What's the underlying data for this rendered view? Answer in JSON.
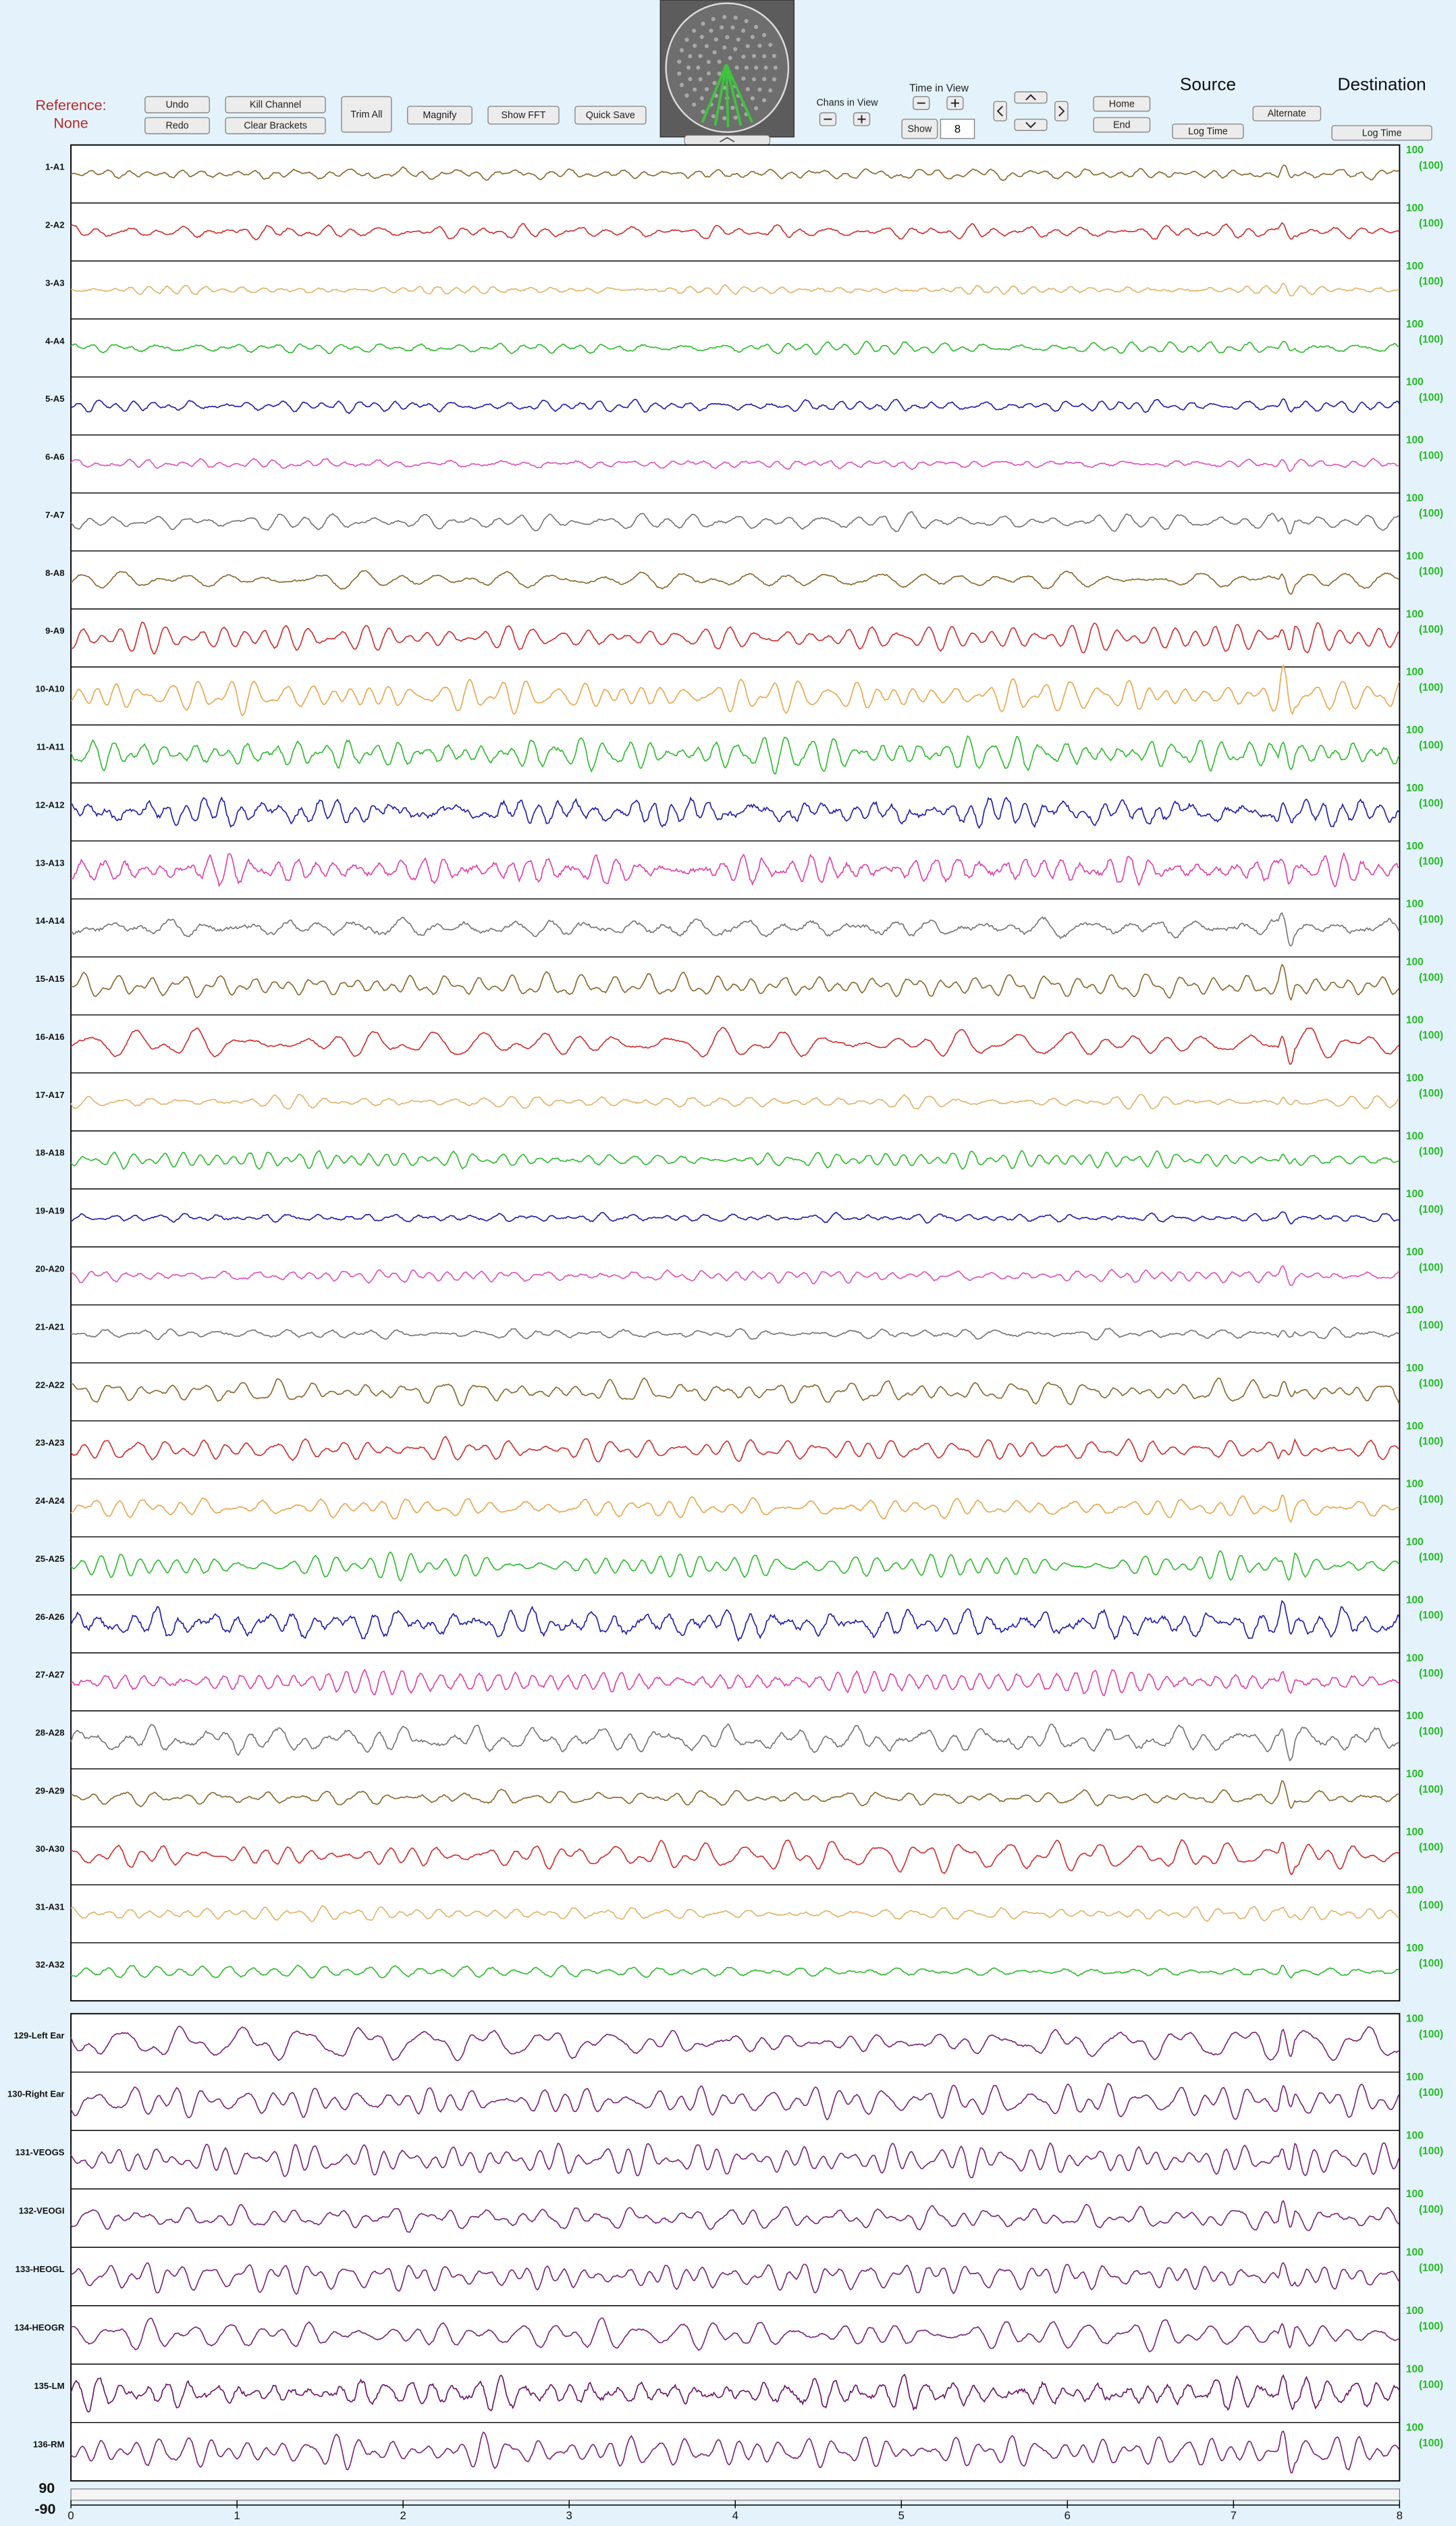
{
  "toolbar": {
    "reference_label": "Reference:",
    "reference_value": "None",
    "undo": "Undo",
    "redo": "Redo",
    "kill_channel": "Kill Channel",
    "clear_brackets": "Clear Brackets",
    "trim_all": "Trim All",
    "magnify": "Magnify",
    "show_fft": "Show FFT",
    "quick_save": "Quick Save",
    "chans_in_view": "Chans in View",
    "time_in_view": "Time in View",
    "show": "Show",
    "time_value": 8,
    "home": "Home",
    "end": "End",
    "source": "Source",
    "source_log_time": "Log Time",
    "alternate": "Alternate",
    "destination": "Destination",
    "destination_log_time": "Log Time"
  },
  "channels": [
    {
      "name": "1-A1",
      "color": "#8c6a30",
      "scale": 100,
      "scale_label": "(100)"
    },
    {
      "name": "2-A2",
      "color": "#cc3333",
      "scale": 100,
      "scale_label": "(100)"
    },
    {
      "name": "3-A3",
      "color": "#e2b46c",
      "scale": 100,
      "scale_label": "(100)"
    },
    {
      "name": "4-A4",
      "color": "#33bb33",
      "scale": 100,
      "scale_label": "(100)"
    },
    {
      "name": "5-A5",
      "color": "#2222aa",
      "scale": 100,
      "scale_label": "(100)"
    },
    {
      "name": "6-A6",
      "color": "#dd55bb",
      "scale": 100,
      "scale_label": "(100)"
    },
    {
      "name": "7-A7",
      "color": "#777777",
      "scale": 100,
      "scale_label": "(100)"
    },
    {
      "name": "8-A8",
      "color": "#8c6a30",
      "scale": 100,
      "scale_label": "(100)"
    },
    {
      "name": "9-A9",
      "color": "#cc3333",
      "scale": 100,
      "scale_label": "(100)"
    },
    {
      "name": "10-A10",
      "color": "#e8a850",
      "scale": 100,
      "scale_label": "(100)"
    },
    {
      "name": "11-A11",
      "color": "#33bb33",
      "scale": 100,
      "scale_label": "(100)"
    },
    {
      "name": "12-A12",
      "color": "#2222aa",
      "scale": 100,
      "scale_label": "(100)"
    },
    {
      "name": "13-A13",
      "color": "#dd44aa",
      "scale": 100,
      "scale_label": "(100)"
    },
    {
      "name": "14-A14",
      "color": "#777777",
      "scale": 100,
      "scale_label": "(100)"
    },
    {
      "name": "15-A15",
      "color": "#8c6a30",
      "scale": 100,
      "scale_label": "(100)"
    },
    {
      "name": "16-A16",
      "color": "#cc3333",
      "scale": 100,
      "scale_label": "(100)"
    },
    {
      "name": "17-A17",
      "color": "#e2b46c",
      "scale": 100,
      "scale_label": "(100)"
    },
    {
      "name": "18-A18",
      "color": "#33bb33",
      "scale": 100,
      "scale_label": "(100)"
    },
    {
      "name": "19-A19",
      "color": "#2222aa",
      "scale": 100,
      "scale_label": "(100)"
    },
    {
      "name": "20-A20",
      "color": "#dd55bb",
      "scale": 100,
      "scale_label": "(100)"
    },
    {
      "name": "21-A21",
      "color": "#777777",
      "scale": 100,
      "scale_label": "(100)"
    },
    {
      "name": "22-A22",
      "color": "#8c6a30",
      "scale": 100,
      "scale_label": "(100)"
    },
    {
      "name": "23-A23",
      "color": "#cc3333",
      "scale": 100,
      "scale_label": "(100)"
    },
    {
      "name": "24-A24",
      "color": "#e8a850",
      "scale": 100,
      "scale_label": "(100)"
    },
    {
      "name": "25-A25",
      "color": "#33bb33",
      "scale": 100,
      "scale_label": "(100)"
    },
    {
      "name": "26-A26",
      "color": "#2222aa",
      "scale": 100,
      "scale_label": "(100)"
    },
    {
      "name": "27-A27",
      "color": "#dd44aa",
      "scale": 100,
      "scale_label": "(100)"
    },
    {
      "name": "28-A28",
      "color": "#777777",
      "scale": 100,
      "scale_label": "(100)"
    },
    {
      "name": "29-A29",
      "color": "#8c6a30",
      "scale": 100,
      "scale_label": "(100)"
    },
    {
      "name": "30-A30",
      "color": "#cc3333",
      "scale": 100,
      "scale_label": "(100)"
    },
    {
      "name": "31-A31",
      "color": "#e2b46c",
      "scale": 100,
      "scale_label": "(100)"
    },
    {
      "name": "32-A32",
      "color": "#33bb33",
      "scale": 100,
      "scale_label": "(100)"
    },
    {
      "name": "129-Left Ear",
      "color": "#7a2a7a",
      "scale": 100,
      "scale_label": "(100)"
    },
    {
      "name": "130-Right Ear",
      "color": "#7a2a7a",
      "scale": 100,
      "scale_label": "(100)"
    },
    {
      "name": "131-VEOGS",
      "color": "#7a2a7a",
      "scale": 100,
      "scale_label": "(100)"
    },
    {
      "name": "132-VEOGI",
      "color": "#7a2a7a",
      "scale": 100,
      "scale_label": "(100)"
    },
    {
      "name": "133-HEOGL",
      "color": "#7a2a7a",
      "scale": 100,
      "scale_label": "(100)"
    },
    {
      "name": "134-HEOGR",
      "color": "#7a2a7a",
      "scale": 100,
      "scale_label": "(100)"
    },
    {
      "name": "135-LM",
      "color": "#6a1a6a",
      "scale": 100,
      "scale_label": "(100)"
    },
    {
      "name": "136-RM",
      "color": "#7a2a7a",
      "scale": 100,
      "scale_label": "(100)"
    }
  ],
  "time_axis": {
    "xlim": [
      0,
      8
    ],
    "ticks": [
      0,
      1,
      2,
      3,
      4,
      5,
      6,
      7,
      8
    ]
  },
  "amplitude_scale": {
    "max": 90,
    "min": -90
  }
}
